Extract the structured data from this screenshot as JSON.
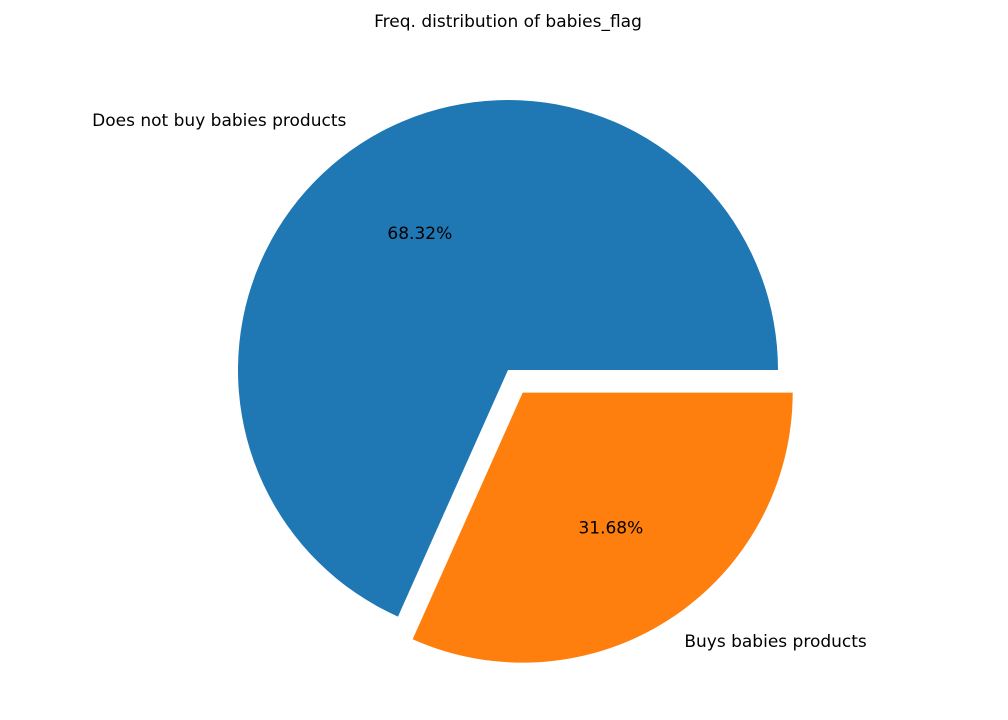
{
  "chart_data": {
    "type": "pie",
    "title": "Freq. distribution of babies_flag",
    "slices": [
      {
        "label": "Does not buy babies products",
        "value": 68.32,
        "pct_label": "68.32%",
        "color": "#1f77b4",
        "exploded": false
      },
      {
        "label": "Buys babies products",
        "value": 31.68,
        "pct_label": "31.68%",
        "color": "#ff7f0e",
        "exploded": true
      }
    ],
    "start_angle_deg": 0,
    "direction": "counterclockwise"
  }
}
